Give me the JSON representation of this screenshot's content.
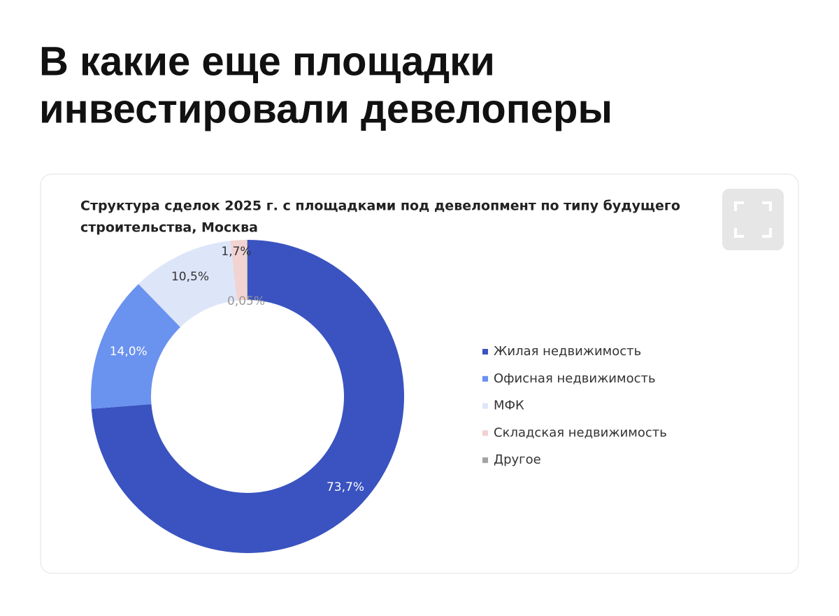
{
  "heading": {
    "lines": [
      "В какие еще площадки",
      "инвестировали девелоперы"
    ]
  },
  "chart_data": {
    "type": "pie",
    "title_lines": [
      "Структура сделок 2025 г. с площадками под девелопмент по типу будущего",
      "строительства, Москва"
    ],
    "categories": [
      "Жилая недвижимость",
      "Офисная недвижимость",
      "МФК",
      "Складская недвижимость",
      "Другое"
    ],
    "values": [
      73.7,
      14.0,
      10.5,
      1.7,
      0.05
    ],
    "value_labels": [
      "73,7%",
      "14,0%",
      "10,5%",
      "1,7%",
      "0,05%"
    ],
    "colors": [
      "#3a53c0",
      "#6a92ef",
      "#dde5f9",
      "#f1d3d2",
      "#a3a3a3"
    ],
    "donut": true,
    "legend": "right"
  }
}
